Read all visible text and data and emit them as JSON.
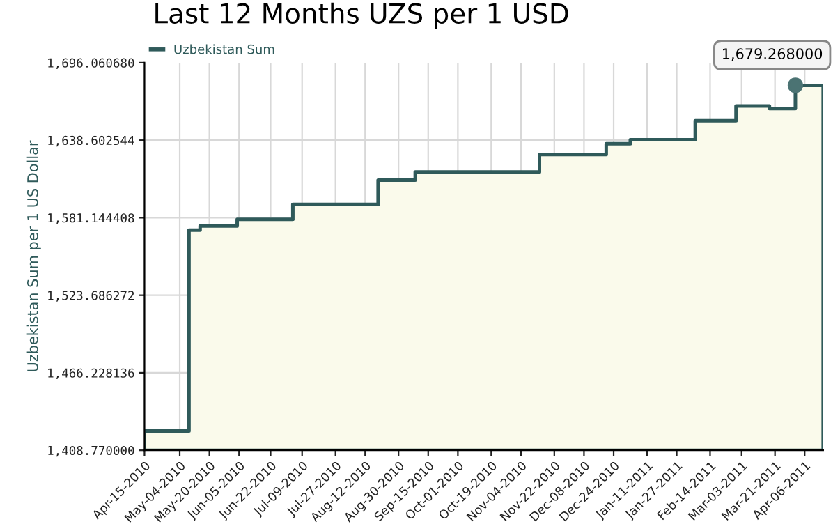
{
  "chart_data": {
    "type": "area",
    "title": "Last 12 Months UZS per 1 USD",
    "ylabel": "Uzbekistan Sum per 1 US Dollar",
    "x": [
      "2010-04-15",
      "2010-05-09",
      "2010-05-15",
      "2010-06-04",
      "2010-07-04",
      "2010-08-19",
      "2010-09-08",
      "2010-11-14",
      "2010-12-20",
      "2011-01-02",
      "2011-02-06",
      "2011-02-28",
      "2011-03-18",
      "2011-04-01",
      "2011-04-16"
    ],
    "series": [
      {
        "name": "Uzbekistan Sum",
        "color": "#2f5a5a",
        "values": [
          1423,
          1572,
          1575,
          1580,
          1591,
          1609,
          1615,
          1628,
          1636,
          1639,
          1653,
          1664,
          1662,
          1679.268,
          1679.268
        ]
      }
    ],
    "annotations": [
      {
        "text": "1,679.268000",
        "x": "2011-04-01",
        "y": 1679.268
      }
    ],
    "xlim": [
      "2010-04-15",
      "2011-04-16"
    ],
    "xticks": [
      {
        "value": "2010-04-15",
        "label": "Apr-15-2010"
      },
      {
        "value": "2010-05-04",
        "label": "May-04-2010"
      },
      {
        "value": "2010-05-20",
        "label": "May-20-2010"
      },
      {
        "value": "2010-06-05",
        "label": "Jun-05-2010"
      },
      {
        "value": "2010-06-22",
        "label": "Jun-22-2010"
      },
      {
        "value": "2010-07-09",
        "label": "Jul-09-2010"
      },
      {
        "value": "2010-07-27",
        "label": "Jul-27-2010"
      },
      {
        "value": "2010-08-12",
        "label": "Aug-12-2010"
      },
      {
        "value": "2010-08-30",
        "label": "Aug-30-2010"
      },
      {
        "value": "2010-09-15",
        "label": "Sep-15-2010"
      },
      {
        "value": "2010-10-01",
        "label": "Oct-01-2010"
      },
      {
        "value": "2010-10-19",
        "label": "Oct-19-2010"
      },
      {
        "value": "2010-11-04",
        "label": "Nov-04-2010"
      },
      {
        "value": "2010-11-22",
        "label": "Nov-22-2010"
      },
      {
        "value": "2010-12-08",
        "label": "Dec-08-2010"
      },
      {
        "value": "2010-12-24",
        "label": "Dec-24-2010"
      },
      {
        "value": "2011-01-11",
        "label": "Jan-11-2011"
      },
      {
        "value": "2011-01-27",
        "label": "Jan-27-2011"
      },
      {
        "value": "2011-02-14",
        "label": "Feb-14-2011"
      },
      {
        "value": "2011-03-03",
        "label": "Mar-03-2011"
      },
      {
        "value": "2011-03-21",
        "label": "Mar-21-2011"
      },
      {
        "value": "2011-04-06",
        "label": "Apr-06-2011"
      }
    ],
    "ylim": [
      1408.77,
      1696.06068
    ],
    "yticks": [
      {
        "value": 1408.77,
        "label": "1,408.770000"
      },
      {
        "value": 1466.228136,
        "label": "1,466.228136"
      },
      {
        "value": 1523.686272,
        "label": "1,523.686272"
      },
      {
        "value": 1581.144408,
        "label": "1,581.144408"
      },
      {
        "value": 1638.602544,
        "label": "1,638.602544"
      },
      {
        "value": 1696.06068,
        "label": "1,696.060680"
      }
    ],
    "grid": true,
    "legend": "top left"
  }
}
